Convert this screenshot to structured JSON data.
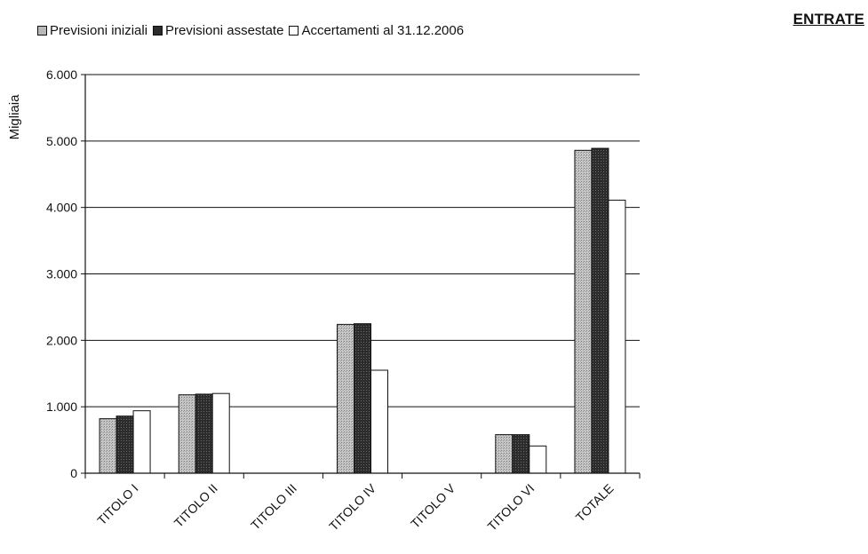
{
  "corner_title": "ENTRATE",
  "chart_data": {
    "type": "bar",
    "ylabel": "Migliaia",
    "ylim": [
      0,
      6000
    ],
    "yticks": [
      0,
      1000,
      2000,
      3000,
      4000,
      5000,
      6000
    ],
    "ytick_labels": [
      "0",
      "1.000",
      "2.000",
      "3.000",
      "4.000",
      "5.000",
      "6.000"
    ],
    "categories": [
      "TITOLO I",
      "TITOLO II",
      "TITOLO III",
      "TITOLO IV",
      "TITOLO V",
      "TITOLO VI",
      "TOTALE"
    ],
    "series": [
      {
        "name": "Previsioni iniziali",
        "color": "#b9b9b9",
        "values": [
          820,
          1180,
          0,
          2240,
          0,
          580,
          4860
        ]
      },
      {
        "name": "Previsioni assestate",
        "color": "#2b2b2b",
        "values": [
          860,
          1190,
          0,
          2250,
          0,
          580,
          4890
        ]
      },
      {
        "name": "Accertamenti al 31.12.2006",
        "color": "#ffffff",
        "values": [
          940,
          1200,
          0,
          1550,
          0,
          410,
          4110
        ]
      }
    ],
    "grid": true,
    "legend_position": "top-left"
  }
}
